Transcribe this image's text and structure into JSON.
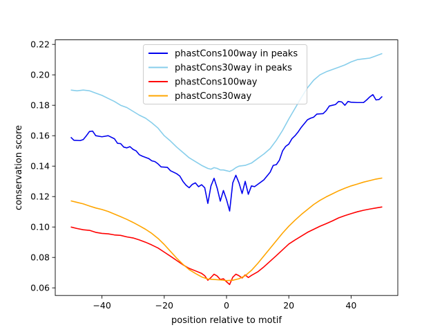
{
  "chart_data": {
    "type": "line",
    "title": "",
    "xlabel": "position relative to motif",
    "ylabel": "conservation score",
    "xlim": [
      -55,
      55
    ],
    "ylim": [
      0.055,
      0.223
    ],
    "xticks": [
      -40,
      -20,
      0,
      20,
      40
    ],
    "xtick_labels": [
      "−40",
      "−20",
      "0",
      "20",
      "40"
    ],
    "yticks": [
      0.06,
      0.08,
      0.1,
      0.12,
      0.14,
      0.16,
      0.18,
      0.2,
      0.22
    ],
    "ytick_labels": [
      "0.06",
      "0.08",
      "0.10",
      "0.12",
      "0.14",
      "0.16",
      "0.18",
      "0.20",
      "0.22"
    ],
    "grid": false,
    "legend_position": "top-center",
    "series": [
      {
        "name": "phastCons100way in peaks",
        "color": "#0000ee",
        "points": [
          [
            -50,
            0.159
          ],
          [
            -49,
            0.157
          ],
          [
            -47,
            0.1568
          ],
          [
            -46,
            0.1575
          ],
          [
            -45,
            0.16
          ],
          [
            -44,
            0.1628
          ],
          [
            -43,
            0.163
          ],
          [
            -42,
            0.16
          ],
          [
            -40,
            0.1593
          ],
          [
            -38,
            0.16
          ],
          [
            -36,
            0.158
          ],
          [
            -35,
            0.155
          ],
          [
            -34,
            0.1548
          ],
          [
            -33,
            0.1525
          ],
          [
            -32,
            0.152
          ],
          [
            -31,
            0.1528
          ],
          [
            -30,
            0.151
          ],
          [
            -29,
            0.15
          ],
          [
            -28,
            0.1475
          ],
          [
            -27,
            0.1465
          ],
          [
            -25,
            0.145
          ],
          [
            -24,
            0.1435
          ],
          [
            -23,
            0.143
          ],
          [
            -22,
            0.1415
          ],
          [
            -21,
            0.1395
          ],
          [
            -19,
            0.1392
          ],
          [
            -18,
            0.137
          ],
          [
            -16,
            0.135
          ],
          [
            -15,
            0.1335
          ],
          [
            -14,
            0.13
          ],
          [
            -13,
            0.1275
          ],
          [
            -12,
            0.1258
          ],
          [
            -11,
            0.128
          ],
          [
            -10,
            0.129
          ],
          [
            -9,
            0.1265
          ],
          [
            -8,
            0.1278
          ],
          [
            -7,
            0.1258
          ],
          [
            -6,
            0.1155
          ],
          [
            -5,
            0.127
          ],
          [
            -4,
            0.132
          ],
          [
            -3,
            0.1255
          ],
          [
            -2,
            0.117
          ],
          [
            -1,
            0.124
          ],
          [
            0,
            0.118
          ],
          [
            1,
            0.1105
          ],
          [
            2,
            0.129
          ],
          [
            3,
            0.134
          ],
          [
            4,
            0.129
          ],
          [
            5,
            0.122
          ],
          [
            6,
            0.13
          ],
          [
            7,
            0.1215
          ],
          [
            8,
            0.127
          ],
          [
            9,
            0.1265
          ],
          [
            10,
            0.128
          ],
          [
            12,
            0.131
          ],
          [
            13,
            0.1335
          ],
          [
            14,
            0.136
          ],
          [
            15,
            0.1405
          ],
          [
            16,
            0.141
          ],
          [
            17,
            0.144
          ],
          [
            18,
            0.15
          ],
          [
            19,
            0.153
          ],
          [
            20,
            0.1545
          ],
          [
            21,
            0.158
          ],
          [
            22,
            0.16
          ],
          [
            23,
            0.1625
          ],
          [
            24,
            0.1655
          ],
          [
            25,
            0.168
          ],
          [
            26,
            0.1705
          ],
          [
            27,
            0.1715
          ],
          [
            28,
            0.1722
          ],
          [
            29,
            0.1742
          ],
          [
            31,
            0.1745
          ],
          [
            32,
            0.1765
          ],
          [
            33,
            0.1795
          ],
          [
            34,
            0.18
          ],
          [
            35,
            0.1805
          ],
          [
            36,
            0.1825
          ],
          [
            37,
            0.1822
          ],
          [
            38,
            0.18
          ],
          [
            39,
            0.1825
          ],
          [
            40,
            0.182
          ],
          [
            42,
            0.1818
          ],
          [
            44,
            0.1818
          ],
          [
            45,
            0.1835
          ],
          [
            46,
            0.1855
          ],
          [
            47,
            0.187
          ],
          [
            48,
            0.1835
          ],
          [
            49,
            0.1838
          ],
          [
            50,
            0.1858
          ]
        ]
      },
      {
        "name": "phastCons30way in peaks",
        "color": "#87ceeb",
        "points": [
          [
            -50,
            0.19
          ],
          [
            -48,
            0.1895
          ],
          [
            -46,
            0.19
          ],
          [
            -44,
            0.1895
          ],
          [
            -42,
            0.188
          ],
          [
            -40,
            0.1865
          ],
          [
            -38,
            0.1845
          ],
          [
            -36,
            0.1825
          ],
          [
            -34,
            0.18
          ],
          [
            -32,
            0.1785
          ],
          [
            -30,
            0.176
          ],
          [
            -28,
            0.1735
          ],
          [
            -26,
            0.1715
          ],
          [
            -24,
            0.1685
          ],
          [
            -22,
            0.165
          ],
          [
            -20,
            0.16
          ],
          [
            -18,
            0.1565
          ],
          [
            -16,
            0.1525
          ],
          [
            -14,
            0.149
          ],
          [
            -12,
            0.1455
          ],
          [
            -10,
            0.143
          ],
          [
            -8,
            0.1405
          ],
          [
            -6,
            0.1385
          ],
          [
            -5,
            0.138
          ],
          [
            -4,
            0.139
          ],
          [
            -3,
            0.1385
          ],
          [
            -2,
            0.1375
          ],
          [
            -1,
            0.1375
          ],
          [
            0,
            0.137
          ],
          [
            1,
            0.1365
          ],
          [
            2,
            0.1375
          ],
          [
            3,
            0.139
          ],
          [
            4,
            0.14
          ],
          [
            6,
            0.1405
          ],
          [
            8,
            0.142
          ],
          [
            10,
            0.145
          ],
          [
            12,
            0.148
          ],
          [
            14,
            0.1515
          ],
          [
            16,
            0.157
          ],
          [
            18,
            0.1635
          ],
          [
            20,
            0.171
          ],
          [
            22,
            0.178
          ],
          [
            24,
            0.185
          ],
          [
            26,
            0.1915
          ],
          [
            28,
            0.1965
          ],
          [
            30,
            0.2
          ],
          [
            32,
            0.202
          ],
          [
            34,
            0.2035
          ],
          [
            36,
            0.205
          ],
          [
            38,
            0.2065
          ],
          [
            40,
            0.2085
          ],
          [
            42,
            0.21
          ],
          [
            44,
            0.2105
          ],
          [
            46,
            0.211
          ],
          [
            48,
            0.2125
          ],
          [
            50,
            0.214
          ]
        ]
      },
      {
        "name": "phastCons100way",
        "color": "#ff0000",
        "points": [
          [
            -50,
            0.1
          ],
          [
            -48,
            0.099
          ],
          [
            -46,
            0.0982
          ],
          [
            -44,
            0.0978
          ],
          [
            -42,
            0.0965
          ],
          [
            -40,
            0.0958
          ],
          [
            -38,
            0.0955
          ],
          [
            -36,
            0.0948
          ],
          [
            -34,
            0.0945
          ],
          [
            -32,
            0.0935
          ],
          [
            -30,
            0.0928
          ],
          [
            -28,
            0.0915
          ],
          [
            -26,
            0.09
          ],
          [
            -24,
            0.0882
          ],
          [
            -22,
            0.0862
          ],
          [
            -20,
            0.0835
          ],
          [
            -18,
            0.0808
          ],
          [
            -16,
            0.078
          ],
          [
            -14,
            0.0752
          ],
          [
            -12,
            0.0728
          ],
          [
            -10,
            0.0712
          ],
          [
            -8,
            0.0695
          ],
          [
            -7,
            0.068
          ],
          [
            -6,
            0.065
          ],
          [
            -5,
            0.0668
          ],
          [
            -4,
            0.069
          ],
          [
            -3,
            0.0678
          ],
          [
            -2,
            0.0655
          ],
          [
            -1,
            0.066
          ],
          [
            0,
            0.064
          ],
          [
            1,
            0.0622
          ],
          [
            2,
            0.067
          ],
          [
            3,
            0.069
          ],
          [
            4,
            0.068
          ],
          [
            5,
            0.0665
          ],
          [
            6,
            0.0685
          ],
          [
            7,
            0.0668
          ],
          [
            8,
            0.0682
          ],
          [
            10,
            0.0705
          ],
          [
            12,
            0.0738
          ],
          [
            14,
            0.0775
          ],
          [
            16,
            0.0812
          ],
          [
            18,
            0.085
          ],
          [
            20,
            0.0888
          ],
          [
            22,
            0.0915
          ],
          [
            24,
            0.094
          ],
          [
            26,
            0.0965
          ],
          [
            28,
            0.0985
          ],
          [
            30,
            0.1005
          ],
          [
            32,
            0.1022
          ],
          [
            34,
            0.104
          ],
          [
            36,
            0.106
          ],
          [
            38,
            0.1075
          ],
          [
            40,
            0.1088
          ],
          [
            42,
            0.11
          ],
          [
            44,
            0.111
          ],
          [
            46,
            0.1118
          ],
          [
            48,
            0.1125
          ],
          [
            50,
            0.1132
          ]
        ]
      },
      {
        "name": "phastCons30way",
        "color": "#ffa500",
        "points": [
          [
            -50,
            0.1172
          ],
          [
            -48,
            0.1162
          ],
          [
            -46,
            0.1152
          ],
          [
            -44,
            0.1138
          ],
          [
            -42,
            0.1125
          ],
          [
            -40,
            0.1115
          ],
          [
            -38,
            0.1102
          ],
          [
            -36,
            0.1085
          ],
          [
            -34,
            0.1068
          ],
          [
            -32,
            0.105
          ],
          [
            -30,
            0.103
          ],
          [
            -28,
            0.1008
          ],
          [
            -26,
            0.0985
          ],
          [
            -24,
            0.0958
          ],
          [
            -22,
            0.0925
          ],
          [
            -20,
            0.0885
          ],
          [
            -18,
            0.084
          ],
          [
            -16,
            0.0795
          ],
          [
            -14,
            0.0755
          ],
          [
            -12,
            0.072
          ],
          [
            -10,
            0.0695
          ],
          [
            -8,
            0.0672
          ],
          [
            -6,
            0.0658
          ],
          [
            -4,
            0.0655
          ],
          [
            -2,
            0.0652
          ],
          [
            0,
            0.0648
          ],
          [
            2,
            0.065
          ],
          [
            4,
            0.066
          ],
          [
            6,
            0.068
          ],
          [
            8,
            0.0715
          ],
          [
            10,
            0.076
          ],
          [
            12,
            0.081
          ],
          [
            14,
            0.086
          ],
          [
            16,
            0.091
          ],
          [
            18,
            0.096
          ],
          [
            20,
            0.1005
          ],
          [
            22,
            0.1045
          ],
          [
            24,
            0.1082
          ],
          [
            26,
            0.1115
          ],
          [
            28,
            0.1148
          ],
          [
            30,
            0.1175
          ],
          [
            32,
            0.1198
          ],
          [
            34,
            0.1218
          ],
          [
            36,
            0.1238
          ],
          [
            38,
            0.1255
          ],
          [
            40,
            0.127
          ],
          [
            42,
            0.1282
          ],
          [
            44,
            0.1295
          ],
          [
            46,
            0.1305
          ],
          [
            48,
            0.1315
          ],
          [
            50,
            0.1322
          ]
        ]
      }
    ]
  }
}
